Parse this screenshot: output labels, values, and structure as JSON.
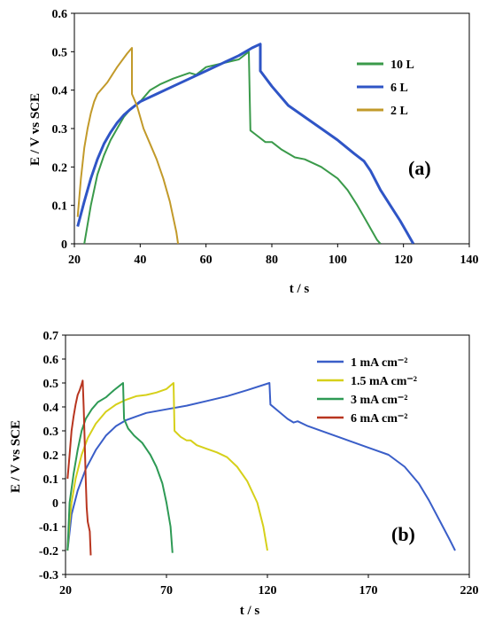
{
  "chart_data": [
    {
      "type": "line",
      "panel_label": "(a)",
      "xlabel": "t / s",
      "ylabel": "E / V vs SCE",
      "xlim": [
        20,
        140
      ],
      "ylim": [
        0,
        0.6
      ],
      "xticks": [
        20,
        40,
        60,
        80,
        100,
        120,
        140
      ],
      "yticks": [
        0,
        0.1,
        0.2,
        0.3,
        0.4,
        0.5,
        0.6
      ],
      "ytick_labels": [
        "0",
        "0.1",
        "0.2",
        "0.3",
        "0.4",
        "0.5",
        "0.6"
      ],
      "legend_position": "right",
      "series": [
        {
          "name": "10 L",
          "color": "#3a9a4a",
          "points": [
            [
              23,
              0
            ],
            [
              25,
              0.1
            ],
            [
              27,
              0.18
            ],
            [
              29,
              0.23
            ],
            [
              31,
              0.27
            ],
            [
              33,
              0.3
            ],
            [
              35,
              0.33
            ],
            [
              37,
              0.35
            ],
            [
              40,
              0.37
            ],
            [
              43,
              0.4
            ],
            [
              46,
              0.415
            ],
            [
              50,
              0.43
            ],
            [
              55,
              0.445
            ],
            [
              57,
              0.44
            ],
            [
              60,
              0.46
            ],
            [
              65,
              0.47
            ],
            [
              70,
              0.48
            ],
            [
              73,
              0.5
            ],
            [
              73.5,
              0.295
            ],
            [
              75,
              0.285
            ],
            [
              78,
              0.265
            ],
            [
              80,
              0.265
            ],
            [
              83,
              0.245
            ],
            [
              87,
              0.225
            ],
            [
              90,
              0.22
            ],
            [
              95,
              0.2
            ],
            [
              100,
              0.17
            ],
            [
              103,
              0.14
            ],
            [
              106,
              0.1
            ],
            [
              108,
              0.07
            ],
            [
              110,
              0.04
            ],
            [
              112,
              0.01
            ],
            [
              113,
              0
            ]
          ]
        },
        {
          "name": "6 L",
          "color": "#2f55c6",
          "points": [
            [
              21,
              0.045
            ],
            [
              23,
              0.11
            ],
            [
              25,
              0.17
            ],
            [
              27,
              0.22
            ],
            [
              29,
              0.26
            ],
            [
              31,
              0.29
            ],
            [
              33,
              0.315
            ],
            [
              35,
              0.335
            ],
            [
              37,
              0.35
            ],
            [
              40,
              0.37
            ],
            [
              45,
              0.39
            ],
            [
              50,
              0.41
            ],
            [
              55,
              0.43
            ],
            [
              60,
              0.45
            ],
            [
              65,
              0.47
            ],
            [
              70,
              0.49
            ],
            [
              74,
              0.51
            ],
            [
              76.5,
              0.52
            ],
            [
              76.5,
              0.45
            ],
            [
              80,
              0.41
            ],
            [
              85,
              0.36
            ],
            [
              90,
              0.33
            ],
            [
              95,
              0.3
            ],
            [
              100,
              0.27
            ],
            [
              105,
              0.235
            ],
            [
              108,
              0.215
            ],
            [
              110,
              0.19
            ],
            [
              113,
              0.14
            ],
            [
              116,
              0.1
            ],
            [
              119,
              0.06
            ],
            [
              121,
              0.03
            ],
            [
              123,
              0
            ]
          ]
        },
        {
          "name": "2 L",
          "color": "#c29a2a",
          "points": [
            [
              21,
              0.07
            ],
            [
              22,
              0.17
            ],
            [
              23,
              0.25
            ],
            [
              24,
              0.3
            ],
            [
              25,
              0.34
            ],
            [
              26,
              0.37
            ],
            [
              27,
              0.39
            ],
            [
              30,
              0.42
            ],
            [
              33,
              0.46
            ],
            [
              36,
              0.495
            ],
            [
              37.5,
              0.51
            ],
            [
              37.5,
              0.39
            ],
            [
              39,
              0.36
            ],
            [
              41,
              0.3
            ],
            [
              43,
              0.26
            ],
            [
              45,
              0.22
            ],
            [
              47,
              0.17
            ],
            [
              49,
              0.11
            ],
            [
              50,
              0.07
            ],
            [
              51,
              0.03
            ],
            [
              51.5,
              0
            ]
          ]
        }
      ]
    },
    {
      "type": "line",
      "panel_label": "(b)",
      "xlabel": "t / s",
      "ylabel": "E / V vs SCE",
      "xlim": [
        20,
        220
      ],
      "ylim": [
        -0.3,
        0.7
      ],
      "xticks": [
        20,
        70,
        120,
        170,
        220
      ],
      "yticks": [
        -0.3,
        -0.2,
        -0.1,
        0,
        0.1,
        0.2,
        0.3,
        0.4,
        0.5,
        0.6,
        0.7
      ],
      "ytick_labels": [
        "-0.3",
        "-0.2",
        "-0.1",
        "0",
        "0.1",
        "0.2",
        "0.3",
        "0.4",
        "0.5",
        "0.6",
        "0.7"
      ],
      "legend_position": "top-right",
      "series": [
        {
          "name": "1 mA cm⁻²",
          "color": "#3a5ec8",
          "points": [
            [
              21,
              -0.2
            ],
            [
              23,
              -0.05
            ],
            [
              26,
              0.05
            ],
            [
              30,
              0.14
            ],
            [
              35,
              0.22
            ],
            [
              40,
              0.28
            ],
            [
              45,
              0.32
            ],
            [
              50,
              0.345
            ],
            [
              55,
              0.36
            ],
            [
              60,
              0.375
            ],
            [
              70,
              0.39
            ],
            [
              80,
              0.405
            ],
            [
              90,
              0.425
            ],
            [
              100,
              0.445
            ],
            [
              110,
              0.47
            ],
            [
              121,
              0.5
            ],
            [
              121.5,
              0.41
            ],
            [
              125,
              0.385
            ],
            [
              130,
              0.35
            ],
            [
              133,
              0.335
            ],
            [
              135,
              0.34
            ],
            [
              140,
              0.32
            ],
            [
              150,
              0.29
            ],
            [
              160,
              0.26
            ],
            [
              170,
              0.23
            ],
            [
              180,
              0.2
            ],
            [
              188,
              0.15
            ],
            [
              195,
              0.08
            ],
            [
              200,
              0.01
            ],
            [
              205,
              -0.07
            ],
            [
              210,
              -0.15
            ],
            [
              213,
              -0.2
            ]
          ]
        },
        {
          "name": "1.5 mA cm⁻²",
          "color": "#d6d01a",
          "points": [
            [
              21,
              -0.2
            ],
            [
              22,
              -0.08
            ],
            [
              23,
              0
            ],
            [
              25,
              0.1
            ],
            [
              28,
              0.2
            ],
            [
              31,
              0.27
            ],
            [
              35,
              0.33
            ],
            [
              40,
              0.38
            ],
            [
              45,
              0.41
            ],
            [
              50,
              0.43
            ],
            [
              55,
              0.445
            ],
            [
              60,
              0.45
            ],
            [
              65,
              0.46
            ],
            [
              70,
              0.475
            ],
            [
              73.5,
              0.5
            ],
            [
              74,
              0.3
            ],
            [
              77,
              0.275
            ],
            [
              80,
              0.26
            ],
            [
              82,
              0.26
            ],
            [
              85,
              0.24
            ],
            [
              90,
              0.225
            ],
            [
              95,
              0.21
            ],
            [
              100,
              0.19
            ],
            [
              105,
              0.15
            ],
            [
              110,
              0.09
            ],
            [
              115,
              0
            ],
            [
              118,
              -0.1
            ],
            [
              120,
              -0.2
            ]
          ]
        },
        {
          "name": "3 mA cm⁻²",
          "color": "#2e9a55",
          "points": [
            [
              21,
              -0.2
            ],
            [
              22,
              0
            ],
            [
              24,
              0.12
            ],
            [
              26,
              0.22
            ],
            [
              28,
              0.3
            ],
            [
              30,
              0.35
            ],
            [
              33,
              0.39
            ],
            [
              36,
              0.42
            ],
            [
              40,
              0.44
            ],
            [
              44,
              0.47
            ],
            [
              47,
              0.49
            ],
            [
              48.5,
              0.5
            ],
            [
              49,
              0.35
            ],
            [
              51,
              0.31
            ],
            [
              54,
              0.28
            ],
            [
              58,
              0.25
            ],
            [
              62,
              0.2
            ],
            [
              65,
              0.15
            ],
            [
              68,
              0.08
            ],
            [
              70,
              0
            ],
            [
              72,
              -0.1
            ],
            [
              73,
              -0.21
            ]
          ]
        },
        {
          "name": "6 mA cm⁻²",
          "color": "#b8351f",
          "points": [
            [
              21,
              0.1
            ],
            [
              22,
              0.2
            ],
            [
              23,
              0.3
            ],
            [
              24,
              0.36
            ],
            [
              25,
              0.41
            ],
            [
              26,
              0.45
            ],
            [
              27,
              0.47
            ],
            [
              28,
              0.495
            ],
            [
              28.5,
              0.51
            ],
            [
              29,
              0.4
            ],
            [
              29.5,
              0.25
            ],
            [
              30,
              0.1
            ],
            [
              30.5,
              -0.02
            ],
            [
              31,
              -0.08
            ],
            [
              32,
              -0.12
            ],
            [
              32.5,
              -0.22
            ]
          ]
        }
      ]
    }
  ]
}
